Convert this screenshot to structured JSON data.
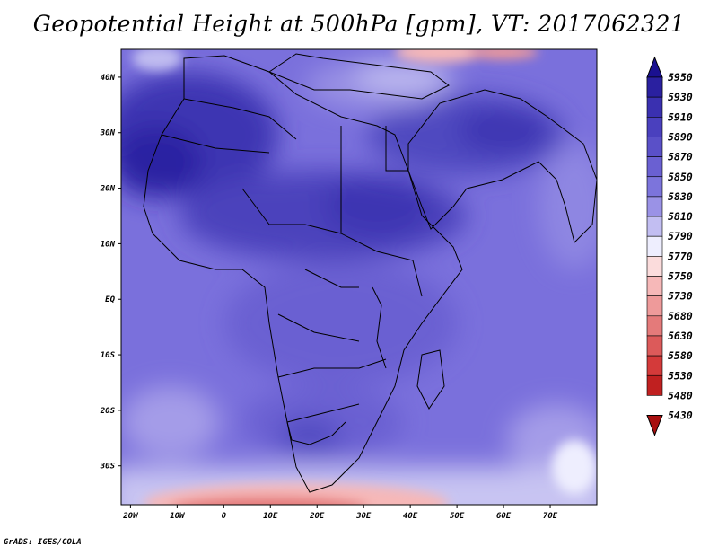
{
  "title": "Geopotential Height at 500hPa [gpm], VT: 2017062321",
  "footer": "GrADS: IGES/COLA",
  "map": {
    "lon_range": [
      -22,
      80
    ],
    "lat_range": [
      -37,
      45
    ],
    "x_ticks": [
      {
        "lon": -20,
        "label": "20W"
      },
      {
        "lon": -10,
        "label": "10W"
      },
      {
        "lon": 0,
        "label": "0"
      },
      {
        "lon": 10,
        "label": "10E"
      },
      {
        "lon": 20,
        "label": "20E"
      },
      {
        "lon": 30,
        "label": "30E"
      },
      {
        "lon": 40,
        "label": "40E"
      },
      {
        "lon": 50,
        "label": "50E"
      },
      {
        "lon": 60,
        "label": "60E"
      },
      {
        "lon": 70,
        "label": "70E"
      }
    ],
    "y_ticks": [
      {
        "lat": 40,
        "label": "40N"
      },
      {
        "lat": 30,
        "label": "30N"
      },
      {
        "lat": 20,
        "label": "20N"
      },
      {
        "lat": 10,
        "label": "10N"
      },
      {
        "lat": 0,
        "label": "EQ"
      },
      {
        "lat": -10,
        "label": "10S"
      },
      {
        "lat": -20,
        "label": "20S"
      },
      {
        "lat": -30,
        "label": "30S"
      }
    ]
  },
  "colorbar": {
    "levels": [
      "5950",
      "5930",
      "5910",
      "5890",
      "5870",
      "5850",
      "5830",
      "5810",
      "5790",
      "5770",
      "5750",
      "5730",
      "5680",
      "5630",
      "5580",
      "5530",
      "5480",
      "5430"
    ],
    "colors": {
      "c5950": "#1a1090",
      "c5930": "#2a20a0",
      "c5910": "#3a30b0",
      "c5890": "#4a40be",
      "c5870": "#5a50c8",
      "c5850": "#6a60d2",
      "c5830": "#7c74dc",
      "c5810": "#9a92e6",
      "c5790": "#c2bef2",
      "c5770": "#eeeefe",
      "c5750": "#fbdcdc",
      "c5730": "#f6b8b8",
      "c5680": "#ee9a9a",
      "c5630": "#e47a7a",
      "c5580": "#dc5a5a",
      "c5530": "#d43a3a",
      "c5480": "#c02020",
      "c5430": "#a81010"
    }
  }
}
